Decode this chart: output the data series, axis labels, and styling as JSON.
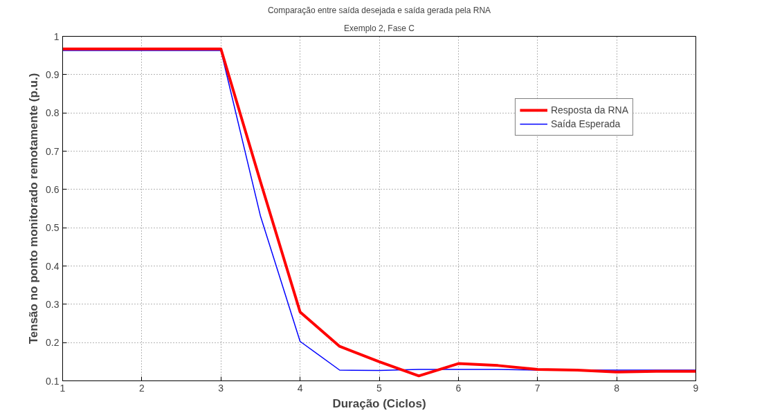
{
  "chart_data": {
    "type": "line",
    "title": "Comparação entre saída desejada e saída gerada pela RNA",
    "subtitle": "Exemplo 2, Fase C",
    "xlabel": "Duração (Ciclos)",
    "ylabel": "Tensão no ponto monitorado remotamente (p.u.)",
    "x": [
      1,
      1.5,
      2,
      2.5,
      3,
      3.5,
      4,
      4.5,
      5,
      5.5,
      6,
      6.5,
      7,
      7.5,
      8,
      8.5,
      9
    ],
    "series": [
      {
        "name": "Resposta da RNA",
        "color": "#ff0000",
        "values": [
          0.967,
          0.967,
          0.967,
          0.967,
          0.967,
          0.62,
          0.28,
          0.19,
          0.15,
          0.113,
          0.145,
          0.14,
          0.13,
          0.128,
          0.123,
          0.125,
          0.125
        ]
      },
      {
        "name": "Saída Esperada",
        "color": "#0000ff",
        "values": [
          0.963,
          0.963,
          0.963,
          0.963,
          0.963,
          0.53,
          0.203,
          0.128,
          0.127,
          0.13,
          0.13,
          0.13,
          0.128,
          0.128,
          0.128,
          0.128,
          0.128
        ]
      }
    ],
    "xlim": [
      1,
      9
    ],
    "xticks": [
      1,
      2,
      3,
      4,
      5,
      6,
      7,
      8,
      9
    ],
    "ylim": [
      0.1,
      1
    ],
    "yticks": [
      0.1,
      0.2,
      0.3,
      0.4,
      0.5,
      0.6,
      0.7,
      0.8,
      0.9,
      1
    ],
    "grid": true,
    "legend": "top right",
    "line_style": "solid"
  }
}
